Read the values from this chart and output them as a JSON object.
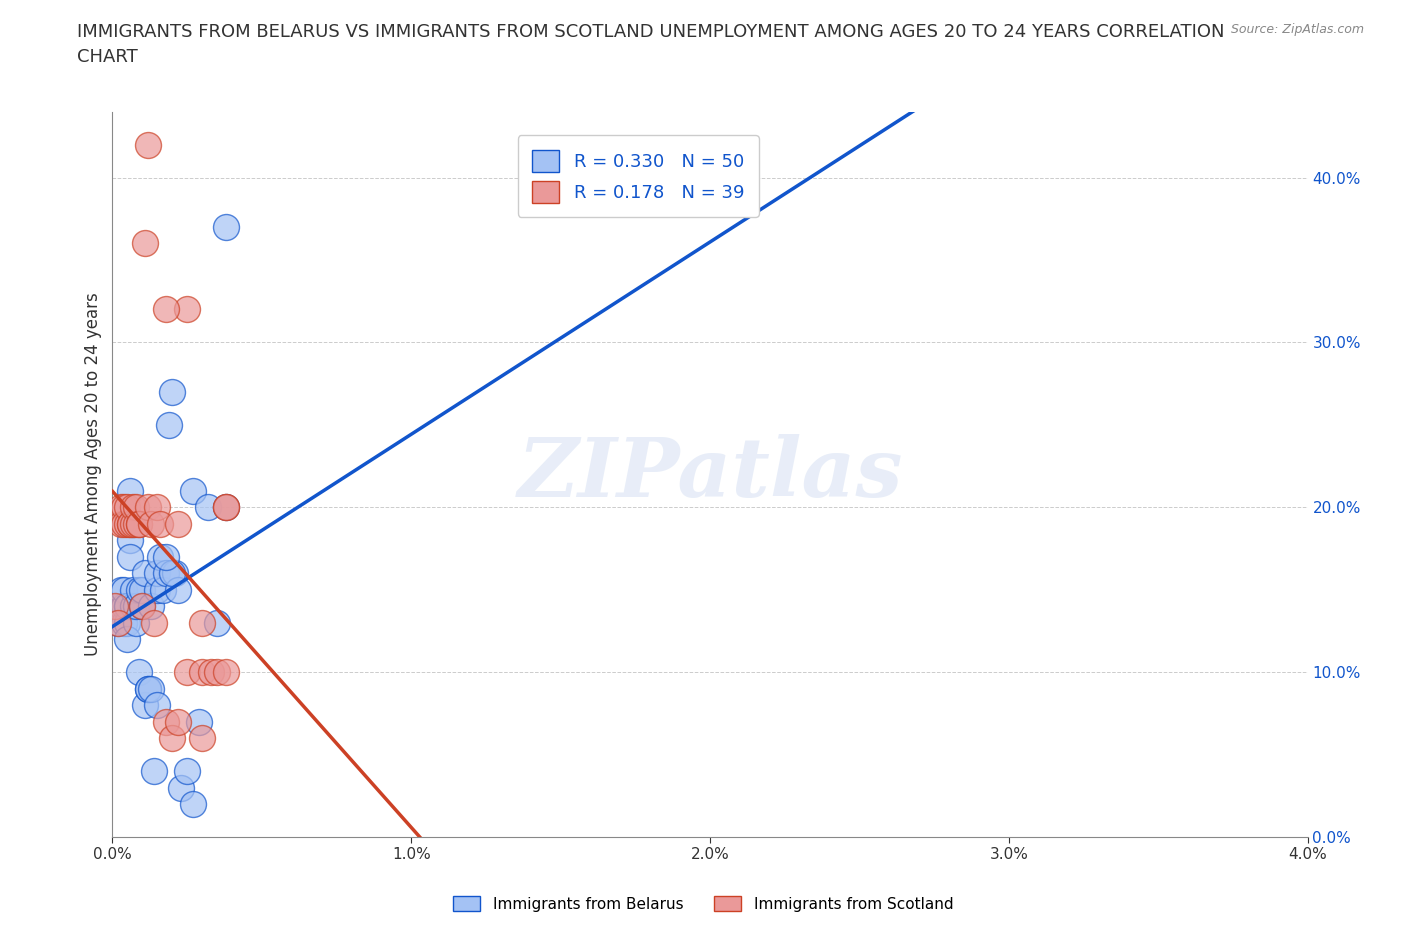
{
  "title": "IMMIGRANTS FROM BELARUS VS IMMIGRANTS FROM SCOTLAND UNEMPLOYMENT AMONG AGES 20 TO 24 YEARS CORRELATION\nCHART",
  "source": "Source: ZipAtlas.com",
  "ylabel": "Unemployment Among Ages 20 to 24 years",
  "xlim": [
    0.0,
    0.04
  ],
  "ylim": [
    0.0,
    0.44
  ],
  "R_belarus": 0.33,
  "N_belarus": 50,
  "R_scotland": 0.178,
  "N_scotland": 39,
  "color_belarus": "#a4c2f4",
  "color_scotland": "#ea9999",
  "color_line_belarus": "#1155cc",
  "color_line_scotland": "#cc4125",
  "background_color": "#ffffff",
  "grid_color": "#aaaaaa",
  "belarus_x": [
    0.0002,
    0.0003,
    0.0003,
    0.0004,
    0.0004,
    0.0004,
    0.0005,
    0.0005,
    0.0005,
    0.0005,
    0.0006,
    0.0006,
    0.0006,
    0.0007,
    0.0007,
    0.0007,
    0.0008,
    0.0008,
    0.0009,
    0.0009,
    0.001,
    0.001,
    0.0011,
    0.0011,
    0.0012,
    0.0012,
    0.0013,
    0.0013,
    0.0014,
    0.0015,
    0.0015,
    0.0016,
    0.0017,
    0.0018,
    0.0019,
    0.002,
    0.0021,
    0.0022,
    0.0023,
    0.0025,
    0.0027,
    0.0027,
    0.0029,
    0.0032,
    0.0035,
    0.0038,
    0.0015,
    0.002,
    0.0018,
    0.0038
  ],
  "belarus_y": [
    0.13,
    0.14,
    0.15,
    0.13,
    0.14,
    0.15,
    0.14,
    0.13,
    0.12,
    0.14,
    0.21,
    0.18,
    0.17,
    0.14,
    0.15,
    0.19,
    0.13,
    0.14,
    0.15,
    0.1,
    0.14,
    0.15,
    0.16,
    0.08,
    0.09,
    0.09,
    0.14,
    0.09,
    0.04,
    0.15,
    0.16,
    0.17,
    0.15,
    0.16,
    0.25,
    0.27,
    0.16,
    0.15,
    0.03,
    0.04,
    0.02,
    0.21,
    0.07,
    0.2,
    0.13,
    0.2,
    0.08,
    0.16,
    0.17,
    0.37
  ],
  "scotland_x": [
    0.0001,
    0.0002,
    0.0003,
    0.0003,
    0.0004,
    0.0004,
    0.0005,
    0.0005,
    0.0006,
    0.0006,
    0.0007,
    0.0007,
    0.0008,
    0.0008,
    0.0009,
    0.0009,
    0.001,
    0.0011,
    0.0012,
    0.0013,
    0.0014,
    0.0015,
    0.0016,
    0.0018,
    0.002,
    0.0022,
    0.0025,
    0.0025,
    0.003,
    0.003,
    0.0033,
    0.0035,
    0.0038,
    0.0038,
    0.0012,
    0.0018,
    0.0022,
    0.003,
    0.0038
  ],
  "scotland_y": [
    0.14,
    0.13,
    0.2,
    0.19,
    0.2,
    0.19,
    0.19,
    0.2,
    0.19,
    0.19,
    0.19,
    0.2,
    0.19,
    0.2,
    0.19,
    0.19,
    0.14,
    0.36,
    0.2,
    0.19,
    0.13,
    0.2,
    0.19,
    0.07,
    0.06,
    0.19,
    0.32,
    0.1,
    0.1,
    0.13,
    0.1,
    0.1,
    0.1,
    0.2,
    0.42,
    0.32,
    0.07,
    0.06,
    0.2
  ],
  "title_fontsize": 13,
  "axis_label_fontsize": 12,
  "tick_fontsize": 11,
  "legend_fontsize": 13
}
